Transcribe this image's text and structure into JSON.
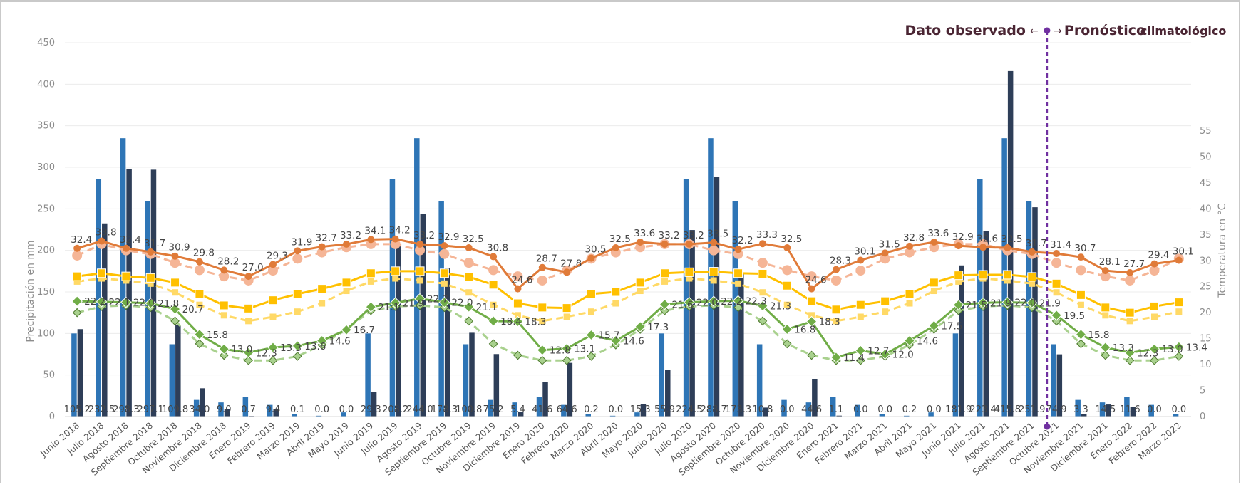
{
  "chart_data": {
    "type": "bar",
    "categories": [
      "Junio 2018",
      "Julio 2018",
      "Agosto 2018",
      "Septiembre 2018",
      "Octubre 2018",
      "Noviembre 2018",
      "Diciembre 2018",
      "Enero 2019",
      "Febrero 2019",
      "Marzo 2019",
      "Abril 2019",
      "Mayo 2019",
      "Junio 2019",
      "Julio 2019",
      "Agosto 2019",
      "Septiembre 2019",
      "Octubre 2019",
      "Noviembre 2019",
      "Diciembre 2019",
      "Enero 2020",
      "Febrero 2020",
      "Marzo 2020",
      "Abril 2020",
      "Mayo 2020",
      "Junio 2020",
      "Julio 2020",
      "Agosto 2020",
      "Septiembre 2020",
      "Octubre 2020",
      "Noviembre 2020",
      "Diciembre 2020",
      "Enero 2021",
      "Febrero 2021",
      "Marzo 2021",
      "Abril 2021",
      "Mayo 2021",
      "Junio 2021",
      "Julio 2021",
      "Agosto 2021",
      "Septiembre 2021",
      "Octubre 2021",
      "Noviembre 2021",
      "Diciembre 2021",
      "Enero 2022",
      "Febrero 2022",
      "Marzo 2022"
    ],
    "ylabel": "Precipitación en mm",
    "y2label": "Temperatura en °C",
    "ylim": [
      0,
      450
    ],
    "yticks": [
      0,
      50,
      100,
      150,
      200,
      250,
      300,
      350,
      400,
      450
    ],
    "y2lim": [
      0,
      72
    ],
    "y2ticks": [
      0,
      5,
      10,
      15,
      20,
      25,
      30,
      35,
      40,
      45,
      50,
      55
    ],
    "grid": true,
    "precip_climatology": {
      "color": "#2e75b6",
      "values": [
        100,
        286,
        335,
        259,
        87,
        20,
        17,
        24,
        14,
        3,
        1,
        5,
        100,
        286,
        335,
        259,
        87,
        20,
        17,
        24,
        14,
        3,
        1,
        5,
        100,
        286,
        335,
        259,
        87,
        20,
        17,
        24,
        14,
        3,
        1,
        5,
        100,
        286,
        335,
        259,
        87,
        20,
        17,
        24,
        14,
        3
      ]
    },
    "precip_observed": {
      "color": "#2e3e58",
      "values": [
        105.2,
        232.5,
        298.3,
        297.1,
        109.8,
        34.0,
        9.0,
        0.7,
        9.4,
        0.1,
        0.0,
        0.0,
        29.3,
        208.2,
        244.0,
        178.3,
        100.8,
        75.2,
        5.4,
        41.6,
        64.6,
        0.2,
        0.0,
        15.3,
        55.9,
        224.5,
        288.7,
        173.3,
        10.8,
        0.0,
        44.6,
        1.1,
        0.0,
        0.0,
        0.2,
        0.0,
        181.9,
        223.4,
        415.8,
        251.9,
        74.9,
        3.3,
        14.5,
        11.6,
        0.0,
        0.0
      ],
      "labels": [
        "105.2",
        "232.5",
        "298.3",
        "297.1",
        "109.8",
        "34.0",
        "9.0",
        "0.7",
        "9.4",
        "0.1",
        "0.0",
        "0.0",
        "29.3",
        "208.2",
        "244.0",
        "178.3",
        "100.8",
        "75.2",
        "5.4",
        "41.6",
        "64.6",
        "0.2",
        "0.0",
        "15.3",
        "55.9",
        "224.5",
        "288.7",
        "173.3",
        "10.8",
        "0.0",
        "44.6",
        "1.1",
        "0.0",
        "0.0",
        "0.2",
        "0.0",
        "181.9",
        "223.4",
        "415.8",
        "251.9",
        "74.9",
        "3.3",
        "14.5",
        "11.6",
        "0.0",
        "0.0"
      ]
    },
    "tmax_observed": {
      "color": "#e07b39",
      "values": [
        32.4,
        33.8,
        32.4,
        31.7,
        30.9,
        29.8,
        28.2,
        27.0,
        29.3,
        31.9,
        32.7,
        33.2,
        34.1,
        34.2,
        33.2,
        32.9,
        32.5,
        30.8,
        24.6,
        28.7,
        27.8,
        30.5,
        32.5,
        33.6,
        33.2,
        33.2,
        33.5,
        32.2,
        33.3,
        32.5,
        24.6,
        28.3,
        30.1,
        31.5,
        32.8,
        33.6,
        32.9,
        32.6,
        32.5,
        31.7,
        31.4,
        30.7,
        28.1,
        27.7,
        29.4,
        30.1
      ],
      "labels": [
        "32.4",
        "33.8",
        "32.4",
        "31.7",
        "30.9",
        "29.8",
        "28.2",
        "27.0",
        "29.3",
        "31.9",
        "32.7",
        "33.2",
        "34.1",
        "34.2",
        "33.2",
        "32.9",
        "32.5",
        "30.8",
        "24.6",
        "28.7",
        "27.8",
        "30.5",
        "32.5",
        "33.6",
        "33.2",
        "33.2",
        "33.5",
        "32.2",
        "33.3",
        "32.5",
        "24.6",
        "28.3",
        "30.1",
        "31.5",
        "32.8",
        "33.6",
        "32.9",
        "32.6",
        "32.5",
        "31.7",
        "31.4",
        "30.7",
        "28.1",
        "27.7",
        "29.4",
        "30.1"
      ]
    },
    "tmax_climatology": {
      "color": "#f5b596",
      "values": [
        31.0,
        33.2,
        32.0,
        31.3,
        29.6,
        28.2,
        27.0,
        26.2,
        28.1,
        30.4,
        31.6,
        32.6,
        33.2,
        33.2,
        32.0,
        31.3,
        29.6,
        28.2,
        27.0,
        26.2,
        28.1,
        30.4,
        31.6,
        32.6,
        33.2,
        33.2,
        32.0,
        31.3,
        29.6,
        28.2,
        27.0,
        26.2,
        28.1,
        30.4,
        31.6,
        32.6,
        33.2,
        33.2,
        32.0,
        31.3,
        29.6,
        28.2,
        27.0,
        26.2,
        28.1,
        30.4
      ]
    },
    "tmean_observed": {
      "color": "#ffc000",
      "values": [
        27.0,
        27.6,
        27.0,
        26.7,
        25.8,
        23.6,
        21.4,
        20.8,
        22.4,
        23.6,
        24.6,
        25.8,
        27.6,
        28.0,
        28.0,
        27.6,
        26.9,
        25.4,
        21.8,
        21.0,
        20.9,
        23.6,
        24.0,
        25.8,
        27.6,
        27.8,
        27.9,
        27.6,
        27.5,
        25.2,
        22.2,
        20.6,
        21.5,
        22.2,
        23.6,
        25.8,
        27.2,
        27.3,
        27.3,
        26.9,
        25.6,
        23.4,
        21.0,
        20.0,
        21.2,
        22.0
      ],
      "labels": [
        "",
        "",
        "",
        "",
        "",
        "",
        "",
        "",
        "",
        "",
        "",
        "",
        "",
        "",
        "",
        "",
        "",
        "",
        "",
        "",
        "",
        "",
        "",
        "",
        "",
        "",
        "",
        "",
        "",
        "",
        "",
        "",
        "",
        "",
        "",
        "",
        "",
        "",
        "",
        "",
        "",
        "",
        "",
        "",
        "",
        ""
      ]
    },
    "tmean_climatology": {
      "color": "#ffd966",
      "values": [
        26.0,
        26.6,
        26.2,
        25.6,
        23.9,
        21.5,
        19.5,
        18.4,
        19.2,
        20.2,
        21.8,
        24.2,
        26.0,
        26.6,
        26.2,
        25.6,
        23.9,
        21.5,
        19.5,
        18.4,
        19.2,
        20.2,
        21.8,
        24.2,
        26.0,
        26.6,
        26.2,
        25.6,
        23.9,
        21.5,
        19.5,
        18.4,
        19.2,
        20.2,
        21.8,
        24.2,
        26.0,
        26.6,
        26.2,
        25.6,
        23.9,
        21.5,
        19.5,
        18.4,
        19.2,
        20.2
      ]
    },
    "tmin_observed": {
      "color": "#70ad47",
      "values": [
        22.2,
        22.1,
        22.0,
        21.8,
        20.7,
        15.8,
        13.0,
        12.3,
        13.3,
        13.6,
        14.6,
        16.7,
        21.1,
        21.9,
        22.7,
        22.0,
        21.1,
        18.4,
        18.3,
        12.8,
        13.1,
        15.7,
        14.6,
        17.3,
        21.6,
        22.0,
        22.2,
        22.3,
        21.3,
        16.8,
        18.3,
        11.4,
        12.7,
        12.0,
        14.6,
        17.5,
        21.5,
        21.9,
        22.0,
        21.9,
        19.5,
        15.8,
        13.3,
        12.3,
        13.0,
        13.4
      ],
      "labels": [
        "22.2",
        "22.1",
        "22.0",
        "21.8",
        "20.7",
        "15.8",
        "13.0",
        "12.3",
        "13.3",
        "13.6",
        "14.6",
        "16.7",
        "21.1",
        "21.9",
        "22.7",
        "22.0",
        "21.1",
        "18.4",
        "18.3",
        "12.8",
        "13.1",
        "15.7",
        "14.6",
        "17.3",
        "21.6",
        "22.0",
        "22.2",
        "22.3",
        "21.3",
        "16.8",
        "18.3",
        "11.4",
        "12.7",
        "12.0",
        "14.6",
        "17.5",
        "21.5",
        "21.9",
        "22.0",
        "21.9",
        "19.5",
        "15.8",
        "13.3",
        "12.3",
        "13.0",
        "13.4"
      ]
    },
    "tmin_climatology": {
      "color": "#a9d18e",
      "values": [
        20.0,
        21.2,
        21.4,
        21.0,
        18.4,
        14.0,
        11.8,
        10.8,
        10.8,
        11.6,
        13.8,
        16.8,
        20.4,
        21.2,
        21.4,
        21.0,
        18.4,
        14.0,
        11.8,
        10.8,
        10.8,
        11.6,
        13.8,
        16.8,
        20.4,
        21.2,
        21.4,
        21.0,
        18.4,
        14.0,
        11.8,
        10.8,
        10.8,
        11.6,
        13.8,
        16.8,
        20.4,
        21.2,
        21.4,
        21.0,
        18.4,
        14.0,
        11.8,
        10.8,
        10.8,
        11.6
      ]
    },
    "divider_after_index": 39,
    "annotations": {
      "observed": "Dato observado",
      "forecast": "Pronóstico",
      "forecast_sub": "climatológico",
      "arrow_left": "←",
      "arrow_right": "→",
      "divider_color": "#7030a0"
    }
  }
}
